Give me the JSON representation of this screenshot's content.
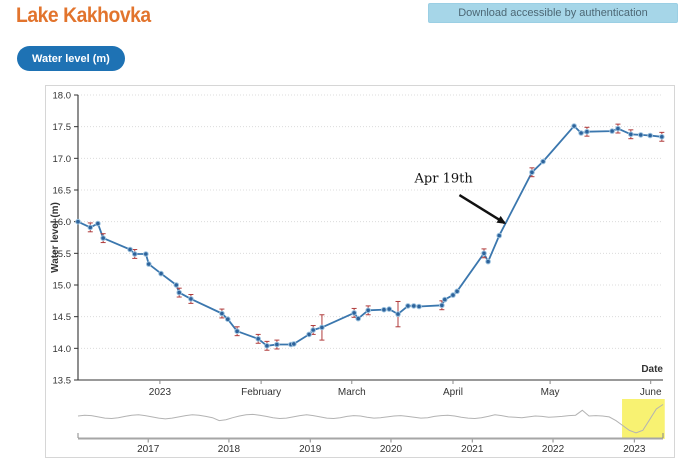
{
  "header": {
    "title": "Lake Kakhovka",
    "download_button_label": "Download accessible by authentication",
    "series_button_label": "Water level (m)"
  },
  "colors": {
    "title_orange": "#e2742d",
    "pill_blue": "#1e72b4",
    "download_bg": "#a6d6e8",
    "line": "#3b77ae",
    "marker_fill": "#2d639b",
    "marker_ring": "#9cc2df",
    "error_bar": "#b03c3c",
    "grid": "#dcdcdc",
    "axis": "#333333",
    "nav_line": "#b3b3b3",
    "nav_axis": "#a6a6a6",
    "selection_yellow": "#f8f272",
    "annotation": "#111111"
  },
  "chart_data": {
    "type": "line",
    "title": "",
    "ylabel": "Water level (m)",
    "xlabel": "Date",
    "ylim": [
      13.5,
      18.0
    ],
    "grid": "dotted horizontal",
    "legend": "none",
    "yticks": [
      18.0,
      17.5,
      17.0,
      16.5,
      16.0,
      15.5,
      15.0,
      14.5,
      14.0,
      13.5
    ],
    "xticks": [
      {
        "f": 0.14,
        "label": "2023"
      },
      {
        "f": 0.313,
        "label": "February"
      },
      {
        "f": 0.468,
        "label": "March"
      },
      {
        "f": 0.641,
        "label": "April"
      },
      {
        "f": 0.807,
        "label": "May"
      },
      {
        "f": 0.979,
        "label": "June"
      }
    ],
    "annotation": {
      "text": "Apr 19th",
      "text_x": 0.625,
      "text_v": 16.62,
      "arrow_from_x": 0.652,
      "arrow_from_v": 16.42,
      "arrow_to_x": 0.729,
      "arrow_to_v": 15.98
    },
    "series": [
      {
        "name": "Water level (m)",
        "color": "#3b77ae",
        "points_format": [
          "x_fraction_of_axis",
          "value_m",
          "error_flag 0=none 1=small 2=large"
        ],
        "points": [
          [
            0.0,
            16.0,
            0
          ],
          [
            0.021,
            15.91,
            1
          ],
          [
            0.034,
            15.97,
            0
          ],
          [
            0.043,
            15.74,
            1
          ],
          [
            0.089,
            15.56,
            0
          ],
          [
            0.097,
            15.49,
            1
          ],
          [
            0.116,
            15.49,
            0
          ],
          [
            0.121,
            15.33,
            0
          ],
          [
            0.142,
            15.18,
            0
          ],
          [
            0.168,
            15.0,
            0
          ],
          [
            0.173,
            14.88,
            1
          ],
          [
            0.193,
            14.78,
            1
          ],
          [
            0.246,
            14.55,
            1
          ],
          [
            0.256,
            14.46,
            0
          ],
          [
            0.272,
            14.27,
            1
          ],
          [
            0.308,
            14.15,
            1
          ],
          [
            0.323,
            14.04,
            1
          ],
          [
            0.34,
            14.06,
            1
          ],
          [
            0.364,
            14.06,
            0
          ],
          [
            0.369,
            14.07,
            0
          ],
          [
            0.395,
            14.22,
            0
          ],
          [
            0.402,
            14.29,
            1
          ],
          [
            0.417,
            14.33,
            2
          ],
          [
            0.472,
            14.56,
            1
          ],
          [
            0.479,
            14.47,
            0
          ],
          [
            0.496,
            14.6,
            1
          ],
          [
            0.523,
            14.61,
            0
          ],
          [
            0.532,
            14.62,
            0
          ],
          [
            0.547,
            14.54,
            2
          ],
          [
            0.564,
            14.67,
            0
          ],
          [
            0.574,
            14.67,
            0
          ],
          [
            0.583,
            14.66,
            0
          ],
          [
            0.622,
            14.68,
            1
          ],
          [
            0.627,
            14.77,
            0
          ],
          [
            0.641,
            14.84,
            0
          ],
          [
            0.648,
            14.9,
            0
          ],
          [
            0.694,
            15.5,
            1
          ],
          [
            0.701,
            15.37,
            0
          ],
          [
            0.72,
            15.78,
            0
          ],
          [
            0.776,
            16.78,
            1
          ],
          [
            0.795,
            16.95,
            0
          ],
          [
            0.848,
            17.51,
            0
          ],
          [
            0.86,
            17.4,
            0
          ],
          [
            0.87,
            17.42,
            1
          ],
          [
            0.913,
            17.43,
            0
          ],
          [
            0.923,
            17.47,
            1
          ],
          [
            0.945,
            17.38,
            1
          ],
          [
            0.962,
            17.37,
            0
          ],
          [
            0.978,
            17.36,
            0
          ],
          [
            0.998,
            17.34,
            1
          ]
        ]
      }
    ],
    "navigator": {
      "years": [
        {
          "f": 0.12,
          "label": "2017"
        },
        {
          "f": 0.258,
          "label": "2018"
        },
        {
          "f": 0.397,
          "label": "2019"
        },
        {
          "f": 0.535,
          "label": "2020"
        },
        {
          "f": 0.674,
          "label": "2021"
        },
        {
          "f": 0.812,
          "label": "2022"
        },
        {
          "f": 0.951,
          "label": "2023"
        }
      ],
      "selection": [
        0.93,
        1.003
      ],
      "values": [
        16.05,
        16.15,
        16.1,
        15.95,
        15.8,
        15.75,
        15.85,
        16.0,
        16.15,
        16.2,
        16.1,
        15.95,
        15.8,
        15.7,
        15.8,
        15.95,
        16.1,
        16.2,
        16.15,
        16.0,
        15.85,
        15.5,
        15.6,
        15.85,
        16.05,
        16.2,
        16.25,
        16.15,
        16.0,
        15.85,
        15.75,
        15.8,
        15.95,
        16.1,
        16.2,
        16.1,
        15.95,
        15.8,
        15.75,
        15.85,
        16.0,
        16.1,
        16.05,
        15.9,
        15.8,
        15.85,
        15.95,
        16.05,
        16.1,
        16.0,
        15.9,
        15.8,
        15.85,
        16.0,
        16.1,
        16.15,
        16.05,
        15.9,
        15.8,
        15.75,
        15.85,
        16.0,
        16.2,
        16.1,
        15.95,
        15.9,
        15.85,
        15.95,
        16.05,
        16.0,
        15.9,
        15.95,
        16.0,
        16.1,
        16.15,
        16.75,
        16.05,
        16.1,
        16.05,
        15.95,
        15.5,
        14.9,
        14.3,
        14.0,
        14.3,
        15.6,
        16.9,
        17.45
      ]
    }
  }
}
